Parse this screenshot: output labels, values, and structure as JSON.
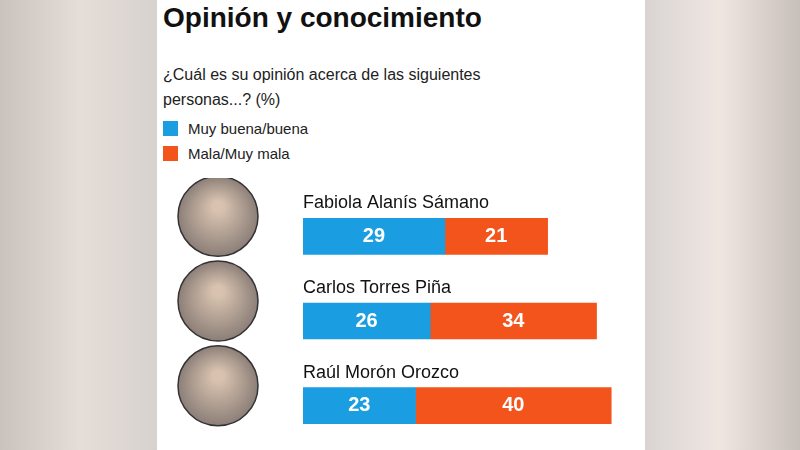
{
  "chart_data": {
    "type": "bar",
    "orientation": "horizontal",
    "stacked": true,
    "title": "Opinión y conocimiento",
    "subtitle": "¿Cuál es su opinión acerca de las siguientes personas...? (%)",
    "categories": [
      "Fabiola Alanís Sámano",
      "Carlos Torres Piña",
      "Raúl Morón Orozco"
    ],
    "series": [
      {
        "name": "Muy buena/buena",
        "color": "#1b9de2",
        "values": [
          29,
          26,
          23
        ]
      },
      {
        "name": "Mala/Muy mala",
        "color": "#f2541b",
        "values": [
          21,
          34,
          40
        ]
      }
    ],
    "xlim": [
      0,
      65
    ],
    "data_labels": true,
    "tick_labels": false,
    "grid": false,
    "legend": "top-left"
  }
}
